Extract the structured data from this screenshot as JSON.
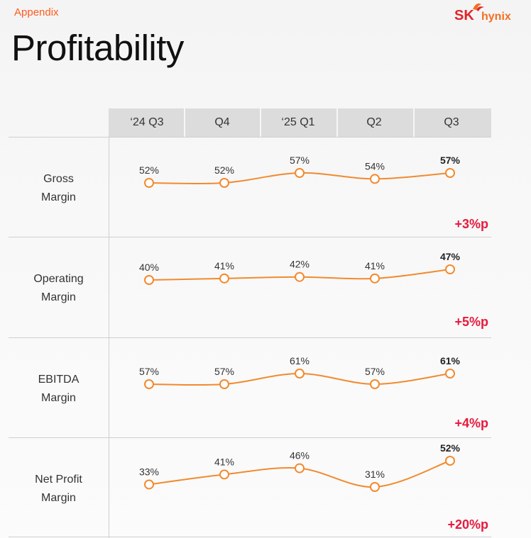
{
  "header": {
    "section": "Appendix",
    "title": "Profitability",
    "logo_sk": "SK",
    "logo_hynix": "hynix"
  },
  "colors": {
    "accent": "#f28a2e",
    "highlight": "#e8193c",
    "brand_red": "#e3232a",
    "brand_orange": "#f26f21"
  },
  "chart_data": {
    "type": "line",
    "categories": [
      "‘24 Q3",
      "Q4",
      "‘25 Q1",
      "Q2",
      "Q3"
    ],
    "series": [
      {
        "name": "Gross Margin",
        "label_lines": [
          "Gross",
          "Margin"
        ],
        "labels": [
          "52%",
          "52%",
          "57%",
          "54%",
          "57%"
        ],
        "values": [
          52,
          52,
          57,
          54,
          57
        ],
        "delta": "+3%p"
      },
      {
        "name": "Operating Margin",
        "label_lines": [
          "Operating",
          "Margin"
        ],
        "labels": [
          "40%",
          "41%",
          "42%",
          "41%",
          "47%"
        ],
        "values": [
          40,
          41,
          42,
          41,
          47
        ],
        "delta": "+5%p"
      },
      {
        "name": "EBITDA Margin",
        "label_lines": [
          "EBITDA",
          "Margin"
        ],
        "labels": [
          "57%",
          "57%",
          "61%",
          "57%",
          "61%"
        ],
        "values": [
          57,
          57,
          61,
          57,
          61
        ],
        "delta": "+4%p"
      },
      {
        "name": "Net Profit Margin",
        "label_lines": [
          "Net Profit",
          "Margin"
        ],
        "labels": [
          "33%",
          "41%",
          "46%",
          "31%",
          "52%"
        ],
        "values": [
          33,
          41,
          46,
          31,
          52
        ],
        "delta": "+20%p"
      }
    ]
  }
}
